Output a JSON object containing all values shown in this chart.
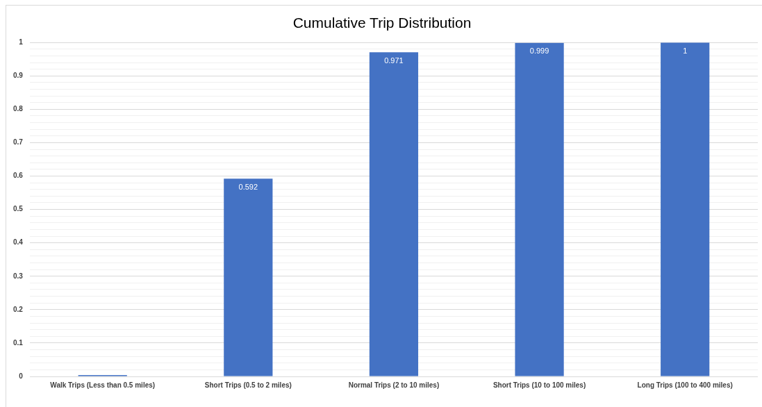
{
  "chart_data": {
    "type": "bar",
    "title": "Cumulative Trip Distribution",
    "categories": [
      "Walk Trips (Less than 0.5 miles)",
      "Short Trips (0.5 to 2 miles)",
      "Normal Trips (2 to 10 miles)",
      "Short Trips (10 to 100 miles)",
      "Long Trips (100 to 400 miles)"
    ],
    "values": [
      0.004,
      0.592,
      0.971,
      0.999,
      1
    ],
    "value_labels": [
      null,
      "0.592",
      "0.971",
      "0.999",
      "1"
    ],
    "color": "#4472c4",
    "ylim": [
      0,
      1
    ],
    "yticks": [
      0,
      {
        "value": 0.02,
        "label": null
      },
      {
        "value": 0.04,
        "label": null
      },
      {
        "value": 0.06,
        "label": null
      },
      {
        "value": 0.08,
        "label": null
      },
      0.1,
      {
        "value": 0.12,
        "label": null
      },
      {
        "value": 0.14,
        "label": null
      },
      {
        "value": 0.16,
        "label": null
      },
      {
        "value": 0.18,
        "label": null
      },
      0.2,
      {
        "value": 0.22,
        "label": null
      },
      {
        "value": 0.24,
        "label": null
      },
      {
        "value": 0.26,
        "label": null
      },
      {
        "value": 0.28,
        "label": null
      },
      0.3,
      {
        "value": 0.32,
        "label": null
      },
      {
        "value": 0.34,
        "label": null
      },
      {
        "value": 0.36,
        "label": null
      },
      {
        "value": 0.38,
        "label": null
      },
      0.4,
      {
        "value": 0.42,
        "label": null
      },
      {
        "value": 0.44,
        "label": null
      },
      {
        "value": 0.46,
        "label": null
      },
      {
        "value": 0.48,
        "label": null
      },
      0.5,
      {
        "value": 0.52,
        "label": null
      },
      {
        "value": 0.54,
        "label": null
      },
      {
        "value": 0.56,
        "label": null
      },
      {
        "value": 0.58,
        "label": null
      },
      0.6,
      {
        "value": 0.62,
        "label": null
      },
      {
        "value": 0.64,
        "label": null
      },
      {
        "value": 0.66,
        "label": null
      },
      {
        "value": 0.68,
        "label": null
      },
      0.7,
      {
        "value": 0.72,
        "label": null
      },
      {
        "value": 0.74,
        "label": null
      },
      {
        "value": 0.76,
        "label": null
      },
      {
        "value": 0.78,
        "label": null
      },
      0.8,
      {
        "value": 0.82,
        "label": null
      },
      {
        "value": 0.84,
        "label": null
      },
      {
        "value": 0.86,
        "label": null
      },
      {
        "value": 0.88,
        "label": null
      },
      0.9,
      {
        "value": 0.92,
        "label": null
      },
      {
        "value": 0.94,
        "label": null
      },
      {
        "value": 0.96,
        "label": null
      },
      {
        "value": 0.98,
        "label": null
      },
      1
    ],
    "grid": "y"
  }
}
